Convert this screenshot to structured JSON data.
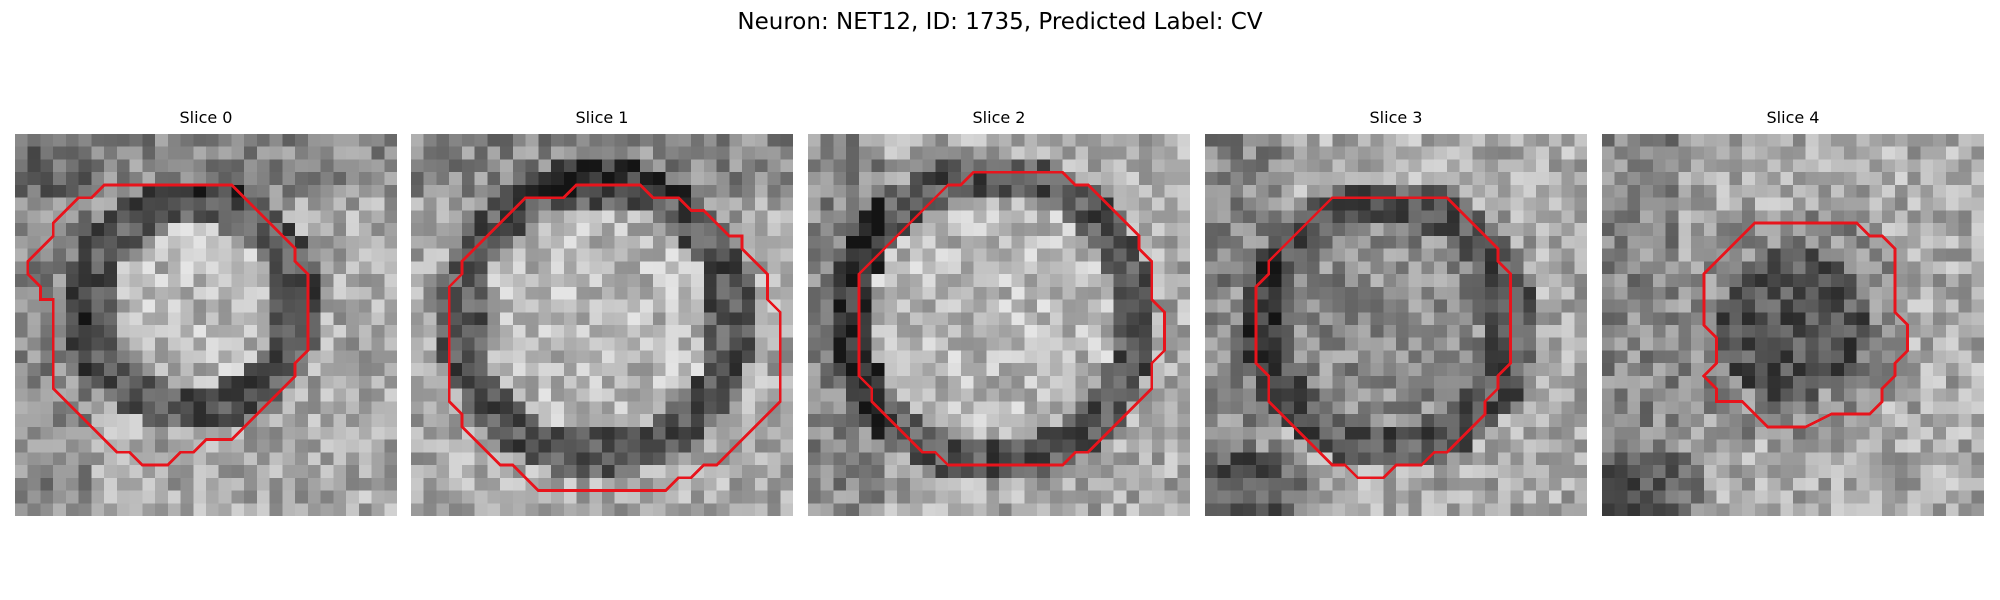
{
  "figure": {
    "title": "Neuron: NET12, ID: 1735, Predicted Label: CV"
  },
  "panels": [
    {
      "title": "Slice 0",
      "outline_color": "#e8141c",
      "blob": {
        "cx": 14.0,
        "cy": 13.5,
        "r": 8.0,
        "interior": "light",
        "ring": "dark",
        "gradient": "dark-top-left"
      }
    },
    {
      "title": "Slice 1",
      "outline_color": "#e8141c",
      "blob": {
        "cx": 14.5,
        "cy": 14.5,
        "r": 10.5,
        "interior": "light",
        "ring": "dark",
        "gradient": "dark-top"
      }
    },
    {
      "title": "Slice 2",
      "outline_color": "#e8141c",
      "blob": {
        "cx": 14.5,
        "cy": 14.5,
        "r": 11.0,
        "interior": "light",
        "ring": "dark",
        "gradient": "dark-left"
      }
    },
    {
      "title": "Slice 3",
      "outline_color": "#e8141c",
      "blob": {
        "cx": 14.5,
        "cy": 15.0,
        "r": 9.5,
        "interior": "medium",
        "ring": "dark",
        "gradient": "dark-bottom-left"
      }
    },
    {
      "title": "Slice 4",
      "outline_color": "#e8141c",
      "blob": {
        "cx": 15.0,
        "cy": 15.0,
        "r": 7.5,
        "interior": "dark",
        "ring": "medium",
        "gradient": "dark-bottom-left"
      }
    }
  ]
}
